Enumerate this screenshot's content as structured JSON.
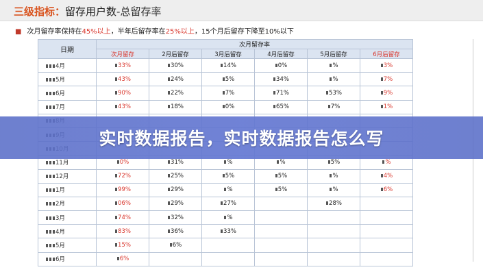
{
  "header": {
    "title_part1": "三级指标：",
    "title_part2": "留存用户数",
    "title_part3": "-总留存率"
  },
  "subtitle": {
    "prefix": "次月留存率保持在",
    "v1": "45%以上",
    "mid1": "，半年后留存率在",
    "v2": "25%以上",
    "tail": "，15个月后留存下降至10%以下"
  },
  "table": {
    "date_header": "日期",
    "group_header": "次月留存率",
    "month_headers": [
      "次月留存",
      "2月后留存",
      "3月后留存",
      "4月后留存",
      "5月后留存",
      "6月后留存"
    ],
    "rows": [
      {
        "date": "4月",
        "cells": [
          "33%",
          "30%",
          "14%",
          "0%",
          "%",
          "3%"
        ]
      },
      {
        "date": "5月",
        "cells": [
          "43%",
          "24%",
          "5%",
          "34%",
          "%",
          "7%"
        ]
      },
      {
        "date": "6月",
        "cells": [
          "90%",
          "22%",
          "7%",
          "71%",
          "53%",
          "9%"
        ]
      },
      {
        "date": "7月",
        "cells": [
          "43%",
          "18%",
          "0%",
          "65%",
          "7%",
          "1%"
        ]
      },
      {
        "date": "8月",
        "cells": [
          "",
          "",
          "",
          "",
          "",
          ""
        ]
      },
      {
        "date": "9月",
        "cells": [
          "",
          "",
          "",
          "",
          "",
          ""
        ]
      },
      {
        "date": "10月",
        "cells": [
          "",
          "",
          "",
          "",
          "",
          ""
        ]
      },
      {
        "date": "11月",
        "cells": [
          "0%",
          "31%",
          "%",
          "%",
          "5%",
          "%"
        ]
      },
      {
        "date": "12月",
        "cells": [
          "72%",
          "25%",
          "5%",
          "5%",
          "%",
          "4%"
        ]
      },
      {
        "date": "1月",
        "cells": [
          "99%",
          "29%",
          "%",
          "5%",
          "%",
          "6%"
        ]
      },
      {
        "date": "2月",
        "cells": [
          "06%",
          "29%",
          "27%",
          "",
          "28%",
          ""
        ]
      },
      {
        "date": "3月",
        "cells": [
          "74%",
          "32%",
          "%",
          "",
          "",
          ""
        ]
      },
      {
        "date": "4月",
        "cells": [
          "83%",
          "36%",
          "33%",
          "",
          "",
          ""
        ]
      },
      {
        "date": "5月",
        "cells": [
          "15%",
          "6%",
          "",
          "",
          "",
          ""
        ]
      },
      {
        "date": "6月",
        "cells": [
          "6%",
          "",
          "",
          "",
          "",
          ""
        ]
      }
    ]
  },
  "banner": {
    "text": "实时数据报告，实时数据报告怎么写"
  }
}
